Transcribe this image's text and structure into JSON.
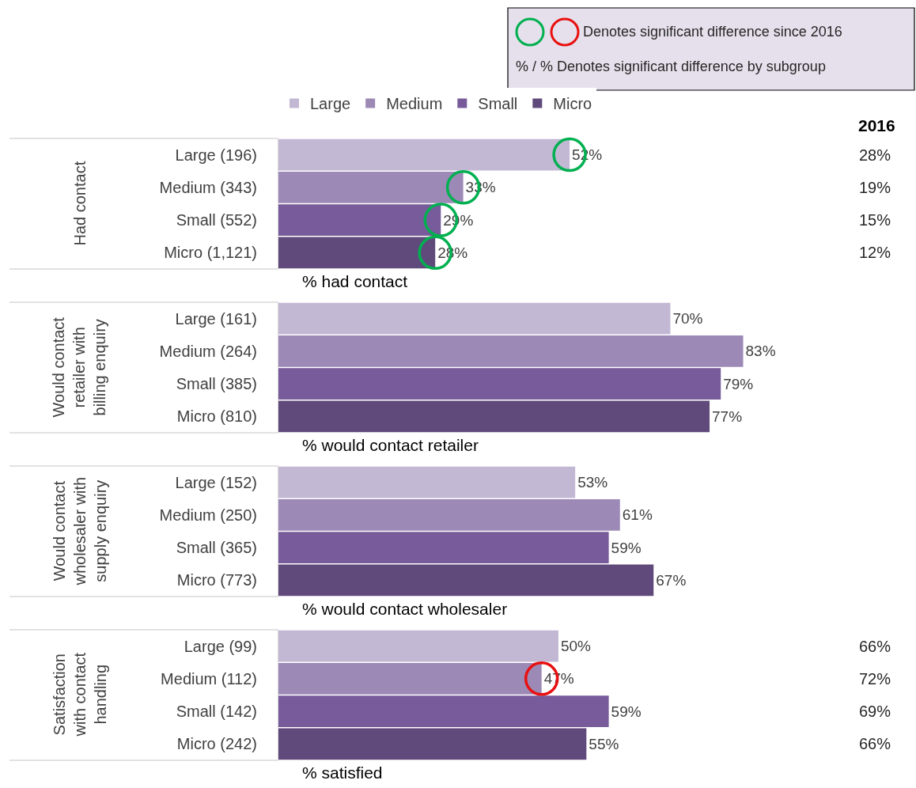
{
  "chart_data": [
    {
      "type": "bar",
      "orientation": "horizontal",
      "stacked": true,
      "legend": "top",
      "tick_labels": "y",
      "ylabel": "Had contact",
      "xlabel": "% had contact",
      "categories": [
        "Large (196)",
        "Medium (343)",
        "Small (552)",
        "Micro (1,121)"
      ],
      "series": [
        {
          "name": "Large",
          "color": "#c3b8d4",
          "values": [
            52,
            null,
            null,
            null
          ],
          "value_labels": [
            "52%",
            null,
            null,
            null
          ]
        },
        {
          "name": "Medium",
          "color": "#9d89b6",
          "values": [
            null,
            33,
            null,
            null
          ],
          "value_labels": [
            null,
            "33%",
            null,
            null
          ]
        },
        {
          "name": "Small",
          "color": "#775b9a",
          "values": [
            null,
            null,
            29,
            null
          ],
          "value_labels": [
            null,
            null,
            "29%",
            null
          ]
        },
        {
          "name": "Micro",
          "color": "#604a7b",
          "values": [
            null,
            null,
            null,
            28
          ],
          "value_labels": [
            null,
            null,
            null,
            "28%"
          ]
        },
        {
          "type": "scatter",
          "marker": "circle",
          "color": "#00b050",
          "values": [
            52,
            33,
            29,
            28
          ]
        }
      ],
      "annotations": [
        "Denotes significant difference since 2016",
        "% / % Denotes significant difference by subgroup",
        "2016",
        "28%",
        "19%",
        "15%",
        "12%"
      ]
    },
    {
      "type": "bar",
      "orientation": "horizontal",
      "stacked": true,
      "tick_labels": "y",
      "ylabel": "Would contact retailer with billing enquiry",
      "xlabel": "% would contact retailer",
      "categories": [
        "Large (161)",
        "Medium (264)",
        "Small (385)",
        "Micro (810)"
      ],
      "series": [
        {
          "color": "#c3b8d4",
          "values": [
            70,
            null,
            null,
            null
          ],
          "value_labels": [
            "70%",
            null,
            null,
            null
          ]
        },
        {
          "color": "#9d89b6",
          "values": [
            null,
            83,
            null,
            null
          ],
          "value_labels": [
            null,
            "83%",
            null,
            null
          ]
        },
        {
          "color": "#775b9a",
          "values": [
            null,
            null,
            79,
            null
          ],
          "value_labels": [
            null,
            null,
            "79%",
            null
          ]
        },
        {
          "color": "#604a7b",
          "values": [
            null,
            null,
            null,
            77
          ],
          "value_labels": [
            null,
            null,
            null,
            "77%"
          ]
        }
      ]
    },
    {
      "type": "bar",
      "orientation": "horizontal",
      "stacked": true,
      "tick_labels": "y",
      "ylabel": "Would contact wholesaler with supply enquiry",
      "xlabel": "% would contact wholesaler",
      "categories": [
        "Large (152)",
        "Medium (250)",
        "Small (365)",
        "Micro (773)"
      ],
      "series": [
        {
          "color": "#c3b8d4",
          "values": [
            53,
            null,
            null,
            null
          ],
          "value_labels": [
            "53%",
            null,
            null,
            null
          ]
        },
        {
          "color": "#9d89b6",
          "values": [
            null,
            61,
            null,
            null
          ],
          "value_labels": [
            null,
            "61%",
            null,
            null
          ]
        },
        {
          "color": "#775b9a",
          "values": [
            null,
            null,
            59,
            null
          ],
          "value_labels": [
            null,
            null,
            "59%",
            null
          ]
        },
        {
          "color": "#604a7b",
          "values": [
            null,
            null,
            null,
            67
          ],
          "value_labels": [
            null,
            null,
            null,
            "67%"
          ]
        }
      ]
    },
    {
      "type": "bar",
      "orientation": "horizontal",
      "stacked": true,
      "tick_labels": "y",
      "ylabel": "Satisfaction with contact handling",
      "xlabel": "% satisfied",
      "categories": [
        "Large (99)",
        "Medium (112)",
        "Small (142)",
        "Micro (242)"
      ],
      "series": [
        {
          "color": "#c3b8d4",
          "values": [
            50,
            null,
            null,
            null
          ],
          "value_labels": [
            "50%",
            null,
            null,
            null
          ]
        },
        {
          "color": "#9d89b6",
          "values": [
            null,
            47,
            null,
            null
          ],
          "value_labels": [
            null,
            "47%",
            null,
            null
          ]
        },
        {
          "color": "#775b9a",
          "values": [
            null,
            null,
            59,
            null
          ],
          "value_labels": [
            null,
            null,
            "59%",
            null
          ]
        },
        {
          "color": "#604a7b",
          "values": [
            null,
            null,
            null,
            55
          ],
          "value_labels": [
            null,
            null,
            null,
            "55%"
          ]
        },
        {
          "type": "scatter",
          "marker": "circle",
          "color": "#e81010",
          "values": [
            null,
            47,
            null,
            null
          ]
        }
      ],
      "annotations": [
        "66%",
        "72%",
        "69%",
        "66%"
      ]
    }
  ]
}
